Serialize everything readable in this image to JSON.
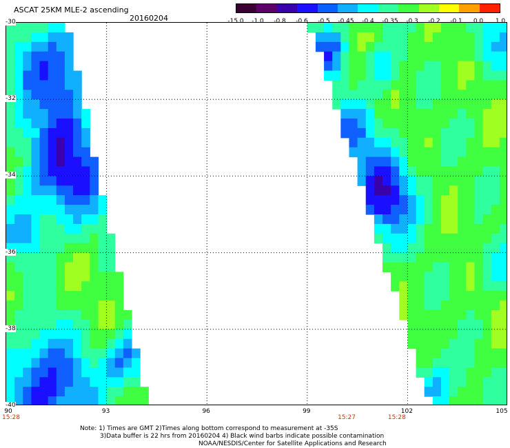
{
  "header": {
    "title": "ASCAT 25KM MLE-2 ascending",
    "date": "20160204"
  },
  "colorbar": {
    "labels": [
      "-15.0",
      "-1.0",
      "-0.8",
      "-0.6",
      "-0.5",
      "-0.45",
      "-0.4",
      "-0.35",
      "-0.3",
      "-0.2",
      "-0.1",
      "0.0",
      "1.0"
    ],
    "colors": [
      "#3a0033",
      "#5a0066",
      "#3a00aa",
      "#1a10ff",
      "#0a60ff",
      "#10b0ff",
      "#00ffff",
      "#30ffa0",
      "#40ff40",
      "#a0ff20",
      "#ffff00",
      "#ffa000",
      "#ff2000"
    ]
  },
  "map": {
    "lat_labels": [
      "-30",
      "-32",
      "-34",
      "-36",
      "-38",
      "-40"
    ],
    "lon_labels": [
      "90",
      "93",
      "96",
      "99",
      "102",
      "105"
    ],
    "times": [
      {
        "label": "15:28",
        "lon": 90
      },
      {
        "label": "15:27",
        "lon": 100.2
      },
      {
        "label": "15:28",
        "lon": 101.7
      }
    ]
  },
  "notes": {
    "line1": "Note: 1) Times are GMT 2)Times along bottom correspond to measurement at -35S",
    "line2": "3)Data buffer is 22 hrs from 20160204 4) Black wind barbs indicate possible contamination",
    "line3": "NOAA/NESDIS/Center for Satellite Applications and Research"
  }
}
